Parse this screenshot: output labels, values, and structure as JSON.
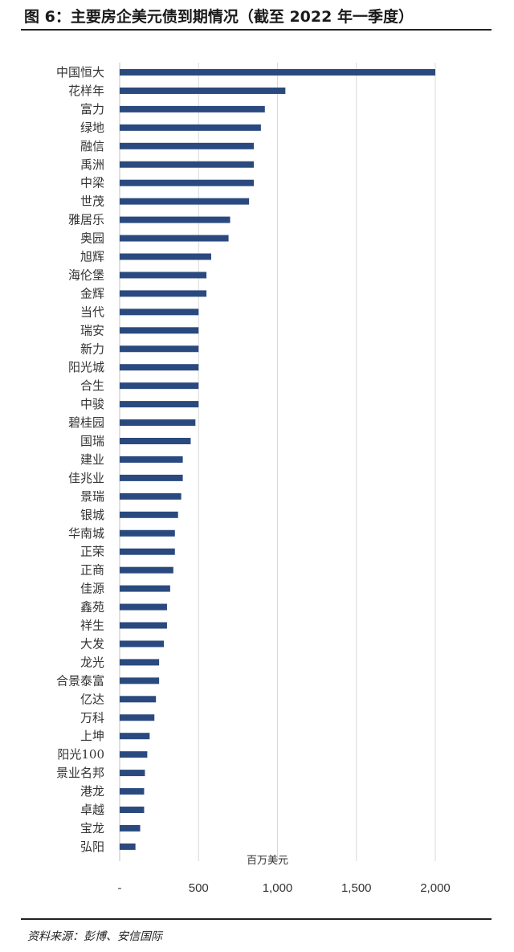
{
  "title": "图 6：主要房企美元债到期情况（截至 2022 年一季度）",
  "source": "资料来源：彭博、安信国际",
  "colors": {
    "bar": "#2a4a7f",
    "grid": "#d9d9d9",
    "text": "#333333"
  },
  "chart_data": {
    "type": "bar",
    "orientation": "horizontal",
    "categories": [
      "中国恒大",
      "花样年",
      "富力",
      "绿地",
      "融信",
      "禹洲",
      "中梁",
      "世茂",
      "雅居乐",
      "奥园",
      "旭辉",
      "海伦堡",
      "金辉",
      "当代",
      "瑞安",
      "新力",
      "阳光城",
      "合生",
      "中骏",
      "碧桂园",
      "国瑞",
      "建业",
      "佳兆业",
      "景瑞",
      "银城",
      "华南城",
      "正荣",
      "正商",
      "佳源",
      "鑫苑",
      "祥生",
      "大发",
      "龙光",
      "合景泰富",
      "亿达",
      "万科",
      "上坤",
      "阳光100",
      "景业名邦",
      "港龙",
      "卓越",
      "宝龙",
      "弘阳"
    ],
    "values": [
      2000,
      1050,
      920,
      895,
      850,
      850,
      850,
      820,
      700,
      690,
      580,
      550,
      550,
      500,
      500,
      500,
      500,
      500,
      500,
      480,
      450,
      400,
      400,
      390,
      370,
      350,
      350,
      340,
      320,
      300,
      300,
      280,
      250,
      250,
      230,
      220,
      190,
      175,
      160,
      155,
      155,
      130,
      100
    ],
    "xlim": [
      0,
      2000
    ],
    "xticks": [
      "-",
      "500",
      "1,000",
      "1,500",
      "2,000"
    ],
    "xtick_values": [
      0,
      500,
      1000,
      1500,
      2000
    ],
    "unit_label": "百万美元",
    "grid": "vertical"
  }
}
